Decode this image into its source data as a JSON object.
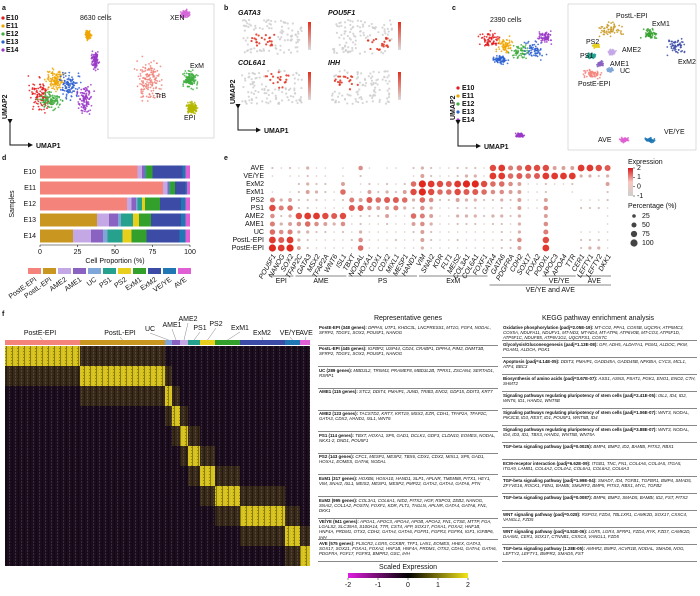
{
  "panel_labels": [
    "a",
    "b",
    "c",
    "d",
    "e",
    "f"
  ],
  "a": {
    "count": "8630 cells",
    "stages": [
      "E10",
      "E11",
      "E12",
      "E13",
      "E14"
    ],
    "stage_colors": [
      "#e41a1c",
      "#f0a500",
      "#3fae3f",
      "#2a5fd0",
      "#9a38c8"
    ],
    "lineages": [
      "XEN",
      "TrB",
      "ExM",
      "EPI"
    ],
    "lineage_colors": [
      "#d46ad8",
      "#f08078",
      "#3fae3f",
      "#b5b800"
    ],
    "x_label": "UMAP1",
    "y_label": "UMAP2"
  },
  "b": {
    "genes": [
      "GATA3",
      "POU5F1",
      "COL6A1",
      "IHH"
    ],
    "x_label": "UMAP1",
    "y_label": "UMAP2"
  },
  "c": {
    "count": "2390 cells",
    "stages": [
      "E10",
      "E11",
      "E12",
      "E13",
      "E14"
    ],
    "x_label": "UMAP1",
    "y_label": "UMAP2"
  },
  "chart_data": {
    "type": "bar",
    "orientation": "horizontal",
    "stacked": true,
    "categories": [
      "E10",
      "E11",
      "E12",
      "E13",
      "E14"
    ],
    "series": [
      {
        "name": "PostE-EPI",
        "color": "#f4837b",
        "values": [
          65,
          82,
          58,
          0,
          0
        ]
      },
      {
        "name": "PostL-EPI",
        "color": "#c9971f",
        "values": [
          0,
          0,
          0,
          38,
          22
        ]
      },
      {
        "name": "AME2",
        "color": "#c4a8e6",
        "values": [
          3,
          3,
          3,
          8,
          12
        ]
      },
      {
        "name": "AME1",
        "color": "#8a63c2",
        "values": [
          2,
          1,
          3,
          6,
          8
        ]
      },
      {
        "name": "UC",
        "color": "#7fa6d8",
        "values": [
          0,
          0,
          1,
          2,
          3
        ]
      },
      {
        "name": "PS1",
        "color": "#25a18e",
        "values": [
          1,
          1,
          3,
          8,
          10
        ]
      },
      {
        "name": "PS2",
        "color": "#e8cf1c",
        "values": [
          0,
          0,
          2,
          4,
          6
        ]
      },
      {
        "name": "ExM1",
        "color": "#33a02c",
        "values": [
          4,
          3,
          10,
          8,
          10
        ]
      },
      {
        "name": "ExM2",
        "color": "#3b4ba6",
        "values": [
          20,
          7,
          14,
          20,
          22
        ]
      },
      {
        "name": "VE/YE",
        "color": "#1f78b4",
        "values": [
          2,
          1,
          3,
          3,
          4
        ]
      },
      {
        "name": "AVE",
        "color": "#e05fd4",
        "values": [
          3,
          2,
          3,
          3,
          3
        ]
      }
    ],
    "xlim": [
      0,
      100
    ],
    "xticks": [
      0,
      25,
      50,
      75,
      100
    ],
    "x_label": "Cell Proportion (%)",
    "y_label": "Samples"
  },
  "e": {
    "rows": [
      "AVE",
      "VE/YE",
      "ExM2",
      "ExM1",
      "PS2",
      "PS1",
      "AME2",
      "AME1",
      "UC",
      "PostL-EPI",
      "PostE-EPI"
    ],
    "genes": [
      "POU5F1",
      "NANOG",
      "SOX2",
      "TFAP2C",
      "GATA3",
      "MSX2",
      "TFAP2A",
      "WNT6",
      "ISL1",
      "TBXT",
      "NODAL",
      "HOXA1",
      "CDX1",
      "CDX2",
      "MIXL1",
      "MESP1",
      "HAND1",
      "VIM",
      "SNAI2",
      "KDR",
      "FLT1",
      "MEIS2",
      "COL3A1",
      "COL6A1",
      "FOXF1",
      "GATA4",
      "GATA6",
      "PDGFRA",
      "CDH2",
      "SOX17",
      "FOXA2",
      "PODXL",
      "APOC3",
      "APOA4",
      "TTR",
      "CER1",
      "LEFTY1",
      "LEFTY2",
      "DKK1"
    ],
    "groups": [
      "EPI",
      "AME",
      "PS",
      "ExM",
      "VE/YE and AVE",
      "VE/YE",
      "AVE"
    ],
    "pct": [
      [
        10,
        5,
        10,
        5,
        20,
        5,
        5,
        0,
        5,
        0,
        40,
        5,
        0,
        5,
        5,
        0,
        10,
        20,
        10,
        5,
        5,
        10,
        10,
        10,
        5,
        80,
        90,
        50,
        60,
        80,
        80,
        80,
        30,
        30,
        30,
        90,
        90,
        80,
        70
      ],
      [
        5,
        0,
        5,
        5,
        10,
        5,
        5,
        0,
        5,
        0,
        10,
        0,
        0,
        0,
        0,
        0,
        5,
        30,
        10,
        5,
        5,
        10,
        20,
        20,
        5,
        90,
        90,
        60,
        70,
        60,
        70,
        90,
        90,
        90,
        90,
        20,
        20,
        10,
        20
      ],
      [
        0,
        0,
        0,
        10,
        20,
        10,
        10,
        0,
        30,
        0,
        5,
        10,
        5,
        10,
        5,
        10,
        60,
        100,
        90,
        80,
        70,
        90,
        100,
        100,
        80,
        60,
        60,
        40,
        30,
        5,
        5,
        10,
        5,
        5,
        10,
        0,
        0,
        0,
        30
      ],
      [
        5,
        0,
        5,
        10,
        30,
        20,
        10,
        5,
        60,
        5,
        5,
        30,
        10,
        20,
        10,
        30,
        80,
        100,
        80,
        60,
        60,
        80,
        70,
        70,
        60,
        40,
        40,
        30,
        30,
        5,
        5,
        10,
        0,
        0,
        5,
        0,
        0,
        0,
        10
      ],
      [
        50,
        20,
        30,
        10,
        10,
        10,
        5,
        5,
        10,
        50,
        30,
        70,
        60,
        70,
        70,
        60,
        20,
        60,
        40,
        10,
        10,
        30,
        20,
        20,
        10,
        10,
        20,
        10,
        30,
        5,
        5,
        30,
        0,
        0,
        0,
        5,
        5,
        5,
        10
      ],
      [
        80,
        50,
        60,
        10,
        10,
        5,
        5,
        5,
        5,
        70,
        70,
        40,
        30,
        30,
        50,
        20,
        10,
        40,
        20,
        5,
        5,
        10,
        10,
        10,
        5,
        5,
        10,
        5,
        30,
        5,
        5,
        40,
        0,
        0,
        0,
        10,
        10,
        10,
        5
      ],
      [
        40,
        10,
        20,
        80,
        90,
        90,
        80,
        70,
        80,
        5,
        10,
        10,
        10,
        30,
        5,
        5,
        60,
        50,
        30,
        5,
        5,
        20,
        20,
        20,
        10,
        20,
        20,
        10,
        20,
        0,
        0,
        30,
        0,
        0,
        0,
        0,
        0,
        0,
        5
      ],
      [
        50,
        20,
        30,
        40,
        60,
        40,
        30,
        20,
        40,
        5,
        10,
        5,
        5,
        10,
        5,
        5,
        30,
        40,
        20,
        5,
        5,
        10,
        10,
        10,
        5,
        10,
        10,
        5,
        20,
        0,
        0,
        40,
        0,
        0,
        0,
        0,
        0,
        0,
        5
      ],
      [
        60,
        40,
        50,
        20,
        20,
        10,
        10,
        5,
        10,
        5,
        20,
        5,
        5,
        5,
        5,
        5,
        10,
        30,
        10,
        5,
        5,
        5,
        5,
        5,
        5,
        5,
        10,
        5,
        20,
        0,
        0,
        50,
        0,
        0,
        0,
        5,
        5,
        5,
        5
      ],
      [
        90,
        70,
        90,
        20,
        10,
        5,
        5,
        5,
        5,
        10,
        40,
        5,
        5,
        5,
        10,
        5,
        5,
        30,
        10,
        5,
        5,
        10,
        5,
        5,
        5,
        5,
        10,
        10,
        40,
        0,
        0,
        80,
        0,
        0,
        0,
        10,
        10,
        10,
        5
      ],
      [
        100,
        90,
        100,
        30,
        10,
        5,
        5,
        5,
        5,
        5,
        60,
        5,
        5,
        5,
        5,
        5,
        5,
        20,
        5,
        5,
        5,
        5,
        5,
        5,
        5,
        5,
        10,
        10,
        30,
        0,
        0,
        90,
        0,
        0,
        0,
        10,
        20,
        20,
        5
      ]
    ],
    "expression_title": "Expression",
    "expression_ticks": [
      2,
      1,
      0,
      -1
    ],
    "percentage_title": "Percentage (%)",
    "percentage_ticks": [
      25,
      50,
      75,
      100
    ]
  },
  "f": {
    "columns": [
      "PostE-EPI",
      "PostL-EPI",
      "UC",
      "AME1",
      "AME2",
      "PS1",
      "PS2",
      "ExM1",
      "ExM2",
      "VE/YE",
      "AVE"
    ],
    "genes_title": "Representative genes",
    "kegg_title": "KEGG pathway enrichment analysis",
    "scale_title": "Scaled Expression",
    "scale_ticks": [
      -2,
      -1,
      0,
      1,
      2
    ],
    "genes": [
      {
        "name": "PostE-EPI (348 genes):",
        "list": "DPPA5, UTF1, KHDC3L, LNCPRESS1, MT1G, FGF4, NODAL, SFRP2, TDGF1, SOX2, POU5F1, NANOG"
      },
      {
        "name": "PostL-EPI (445 genes):",
        "list": "IGFBP2, USP44, CD24, CRABP1, DPPA4, PIM2, DNMT3B, SFRP2, TDGF1, SOX2, POU5F1, NANOG"
      },
      {
        "name": "UC (289 genes):",
        "list": "MBD3L2, TRIM43, PRAMEF8, MBD3L2B, TPRX1, ZSCAN4, SERTAD1, RSRP1"
      },
      {
        "name": "AME1 (115 genes):",
        "list": "STC2, DDIT4, PMAIP1, JUND, TRIB3, ENO2, GDF15, DDIT3, KRT7"
      },
      {
        "name": "AME2 (123 genes):",
        "list": "TACSTD2, KRT7, KRT19, MSX2, EZR, CDH1, TFAP2A, TFAP2C, GATA3, CDX2, HAND1, ISL1, WNT6"
      },
      {
        "name": "PS1 (114 genes):",
        "list": "TBXT, HOXA1, SP5, GAD1, DCLK1, GDF3, CLDN10, EOMES, NODAL, NKX1-2, DND1, POU5F1"
      },
      {
        "name": "PS2 (143 genes):",
        "list": "CFC1, MESP1, MESP2, TBX6, CDX1, CDX2, MIXL1, SP5, GAD1, HOXA1, EOMES, GATA6, NODAL"
      },
      {
        "name": "ExM1 (317 genes):",
        "list": "HOXB6, HOXA10, HAND1, SLP1, APLNR, TMEM88, PITX1, HEY1, VIM, SNAI2, ISL1, MEIS2, MESP1, MESP2, PMP22, GATA2, GATA4, GATA6, PTN"
      },
      {
        "name": "ExM2 (995 genes):",
        "list": "COL3A1, COL6A1, NID2, PITX2, HGF, RSPO3, ZEB2, NANOG, SNAI2, COL1A2, POSTN, FOXF1, KDR, FLT1, TAGLN, APLNR, GATA4, GATA6, FN1, DKK1"
      },
      {
        "name": "VE/YE (941 genes):",
        "list": "APOA1, APOC3, APOA4, APOB, APOA2, FN1, CTSE, MTTP, FGA, LGALS2, SLC39A5, S100A14, TTR, CST4, AFP, SOX17, FOXA1, FOXA2, HNF1B, HNF4A, PRDM1, OTX2, CDH2, GATA4, GATA6, FGFR1, FGFR3, FGFR4, IGF1, IGFBP6, IHH"
      },
      {
        "name": "AVE (575 genes):",
        "list": "PLSCR2, LGR5, CCKBR, TFF1, LHX1, EOMES, HHEX, GATA3, SOX17, SOX21, FOXA1, FOXA2, HNF1B, HNF4A, PRDM1, OTX2, CDH1, GATA4, GATA6, PDGFRA, FGF17, FGFR3, BMPR2, GSC, IHH"
      }
    ],
    "kegg": [
      {
        "name": "Oxidative phosphorylation (padj=2.05E-19):",
        "list": "MT-CO2, PPA1, COX5B, UQCRH, ATP5MC3, COX5A, NDUFA11, NDUFV1, MT-ND3, MT-ND4, MT-ATP6, ATP6V0B, MT-CO3, ATP5F1D, ATP5F1C, NDUFB5, ATP6V1G1, UQCRFS1, COX7C"
      },
      {
        "name": "Glycolysis/Gluconeogenesis (padj=1.13E-08):",
        "list": "GPI, ADH5, ALDH7A1, PGM1, ALDOC, PKM, PGAM1, ALDOA, PGK1"
      },
      {
        "name": "Apoptosis (padj=4.14E-05):",
        "list": "DDIT3, PMAIP1, GADD45A, GADD45B, NFKBIA, CYCS, MCL1, ATF4, BBC3"
      },
      {
        "name": "Biosynthesis of amino acids (padj=3.67E-07):",
        "list": "ASS1, ASNS, PSAT1, PGK1, ENO1, ENO2, CTH, SHMT2"
      },
      {
        "name": "Signaling pathways regulating pluripotency of stem cells (padj=2.41E-05):",
        "list": "ISL1, ID4, ID2, WNT6, ID1, HAND1, WNT5B"
      },
      {
        "name": "Signaling pathways regulating pluripotency of stem cells (padj=1.06E-07):",
        "list": "WNT3, NODAL, PIK3CB, ID3, REST, ID1, POU5F1, WNT5B, ID4"
      },
      {
        "name": "Signaling pathways regulating pluripotency of stem cells (padj=3.88E-07):",
        "list": "WNT3, NODAL, ID4, ID3, ID1, TBX3, HAND1, WNT5B, WNT5A"
      },
      {
        "name": "TGF-beta signaling pathway (padj=0.0025):",
        "list": "BMP4, BMP2, ID2, BAMBI, PITX2, RBX1"
      },
      {
        "name": "ECM-receptor interaction (padj=6.62E-09):",
        "list": "ITGB1, TNC, FN1, COL4A6, COL4A5, ITGA5, ITGA9, LAMB1, COL4A2, COL4A1, COL6A1, COL6A2, COL6A3"
      },
      {
        "name": "TGF-beta signaling pathway (padj=1.99E-04):",
        "list": "SMAD7, ID4, TGFB1, TGFBR1, BMP4, SMAD5, ZFYVE16, ROCK1, FBN1, BAMBI, SMURF2, BMP5, PITX2, RBX1, MYC, TGFB2"
      },
      {
        "name": "TGF-beta signaling pathway (padj=0.0087):",
        "list": "BMP6, BMP2, SMAD5, BAMBI, ID2, FST, PITX2"
      },
      {
        "name": "WNT signaling pathway (padj=0.028):",
        "list": "RSPO3, FZD4, TBL1XR1, CAMK2D, SOX17, CXXC4, VANGL1, FZD5"
      },
      {
        "name": "WNT signaling pathway (padj=4.51E-06):",
        "list": "LGR5, LGR4, SFRP1, FZD4, RYK, FZD7, CAMK2D, DAAM1, CER1, SOX17, CTNNB1, CXXC4, VANGL1, FZD5"
      },
      {
        "name": "TGF-beta signaling pathway (1.28E-05):",
        "list": "AMHR2, BMP2, ACVR1B, NODAL, SMAD6, NOG, LEFTY2, LEFTY1, BMPR2, SMAD5, FST"
      }
    ]
  }
}
